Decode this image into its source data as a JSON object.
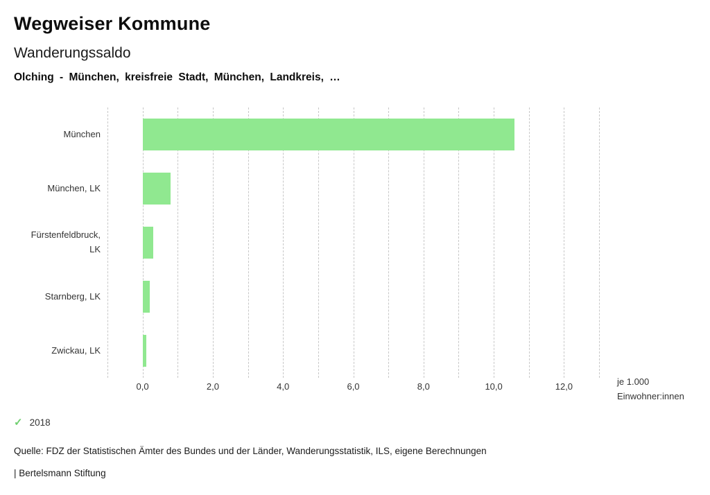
{
  "header": {
    "title": "Wegweiser Kommune",
    "subtitle": "Wanderungssaldo",
    "selection": "Olching - München, kreisfreie Stadt, München, Landkreis, …"
  },
  "chart_data": {
    "type": "bar",
    "orientation": "horizontal",
    "title": "Wanderungssaldo",
    "categories": [
      "München",
      "München, LK",
      "Fürstenfeldbruck, LK",
      "Starnberg, LK",
      "Zwickau, LK"
    ],
    "series": [
      {
        "name": "2018",
        "values": [
          10.6,
          0.8,
          0.3,
          0.2,
          0.1
        ]
      }
    ],
    "xlim": [
      -1,
      13
    ],
    "x_ticks": [
      0,
      2,
      4,
      6,
      8,
      10,
      12
    ],
    "x_tick_labels": [
      "0,0",
      "2,0",
      "4,0",
      "6,0",
      "8,0",
      "10,0",
      "12,0"
    ],
    "gridline_step": 1,
    "grid": true,
    "xlabel": "je 1.000 Einwohner:innen",
    "unit_label_line1": "je 1.000",
    "unit_label_line2": "Einwohner:innen",
    "bar_color": "#90e890",
    "gridline_color": "#c7c7c7",
    "legend_position": "bottom-left"
  },
  "legend": {
    "check_icon": "✓",
    "check_color": "#6fcf6f",
    "year": "2018"
  },
  "footer": {
    "source": "Quelle: FDZ der Statistischen Ämter des Bundes und der Länder, Wanderungsstatistik, ILS, eigene Berechnungen",
    "brand": "| Bertelsmann Stiftung"
  }
}
